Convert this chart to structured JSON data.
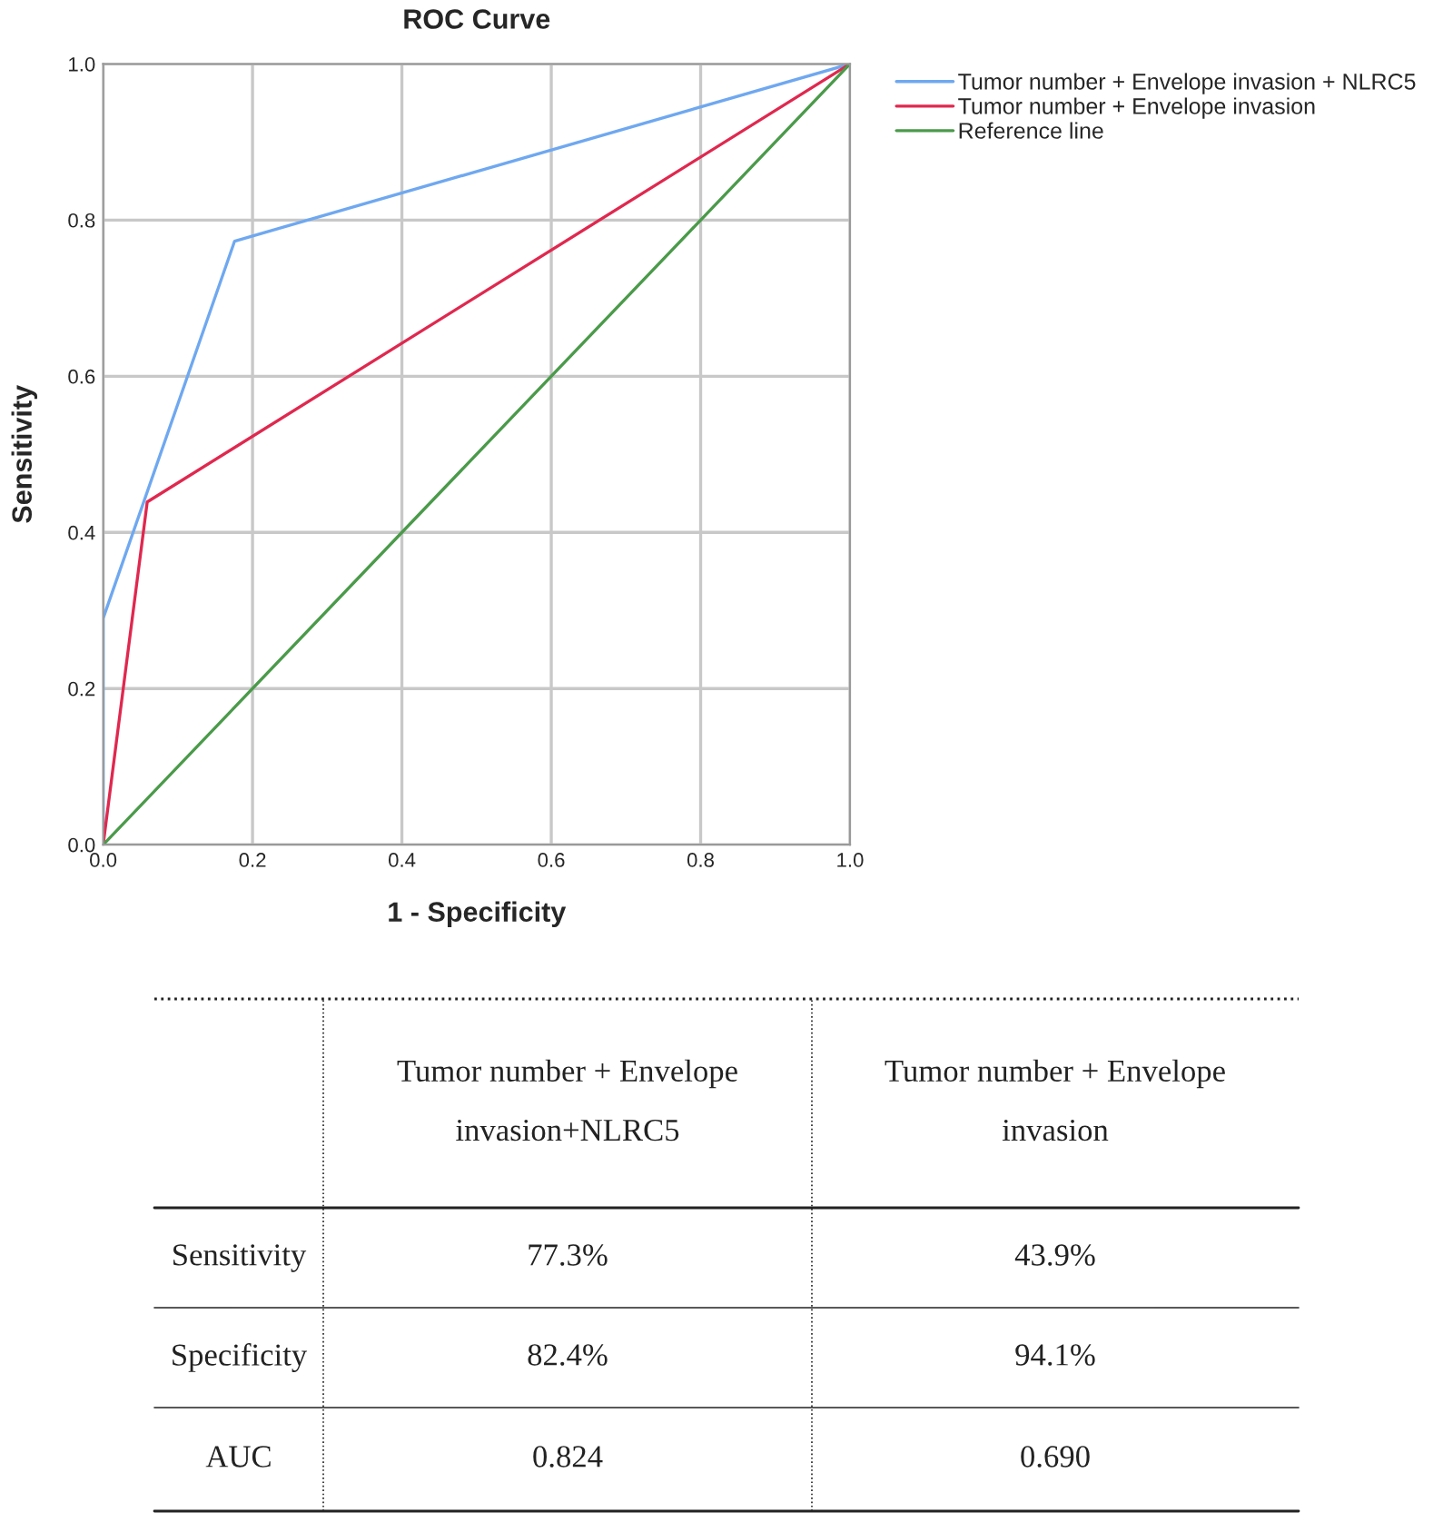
{
  "chart_data": {
    "type": "line",
    "title": "ROC Curve",
    "xlabel": "1 - Specificity",
    "ylabel": "Sensitivity",
    "series": [
      {
        "name": "Tumor number + Envelope invasion + NLRC5",
        "color": "#6fa8f0",
        "x": [
          0,
          0,
          0.176,
          1
        ],
        "values": [
          0,
          0.29,
          0.773,
          1
        ]
      },
      {
        "name": "Tumor number + Envelope invasion",
        "color": "#e0284f",
        "x": [
          0,
          0.059,
          1
        ],
        "values": [
          0,
          0.439,
          1
        ]
      },
      {
        "name": "Reference line",
        "color": "#4a9a4a",
        "x": [
          0,
          1
        ],
        "values": [
          0,
          1
        ]
      }
    ],
    "xlim": [
      0,
      1
    ],
    "ylim": [
      0,
      1
    ],
    "xticks": [
      {
        "value": 0,
        "label": "0.0"
      },
      {
        "value": 0.2,
        "label": "0.2"
      },
      {
        "value": 0.4,
        "label": "0.4"
      },
      {
        "value": 0.6,
        "label": "0.6"
      },
      {
        "value": 0.8,
        "label": "0.8"
      },
      {
        "value": 1,
        "label": "1.0"
      }
    ],
    "yticks": [
      {
        "value": 0,
        "label": "0.0"
      },
      {
        "value": 0.2,
        "label": "0.2"
      },
      {
        "value": 0.4,
        "label": "0.4"
      },
      {
        "value": 0.6,
        "label": "0.6"
      },
      {
        "value": 0.8,
        "label": "0.8"
      },
      {
        "value": 1,
        "label": "1.0"
      }
    ],
    "grid": true,
    "legend": "top right",
    "marker": "none",
    "line_style": "solid",
    "annotations": [
      "Tumor number + Envelope\ninvasion+NLRC5",
      "Tumor number + Envelope\ninvasion",
      "Sensitivity",
      "77.3%",
      "43.9%",
      "Specificity",
      "82.4%",
      "94.1%",
      "AUC",
      "0.824",
      "0.690"
    ]
  }
}
